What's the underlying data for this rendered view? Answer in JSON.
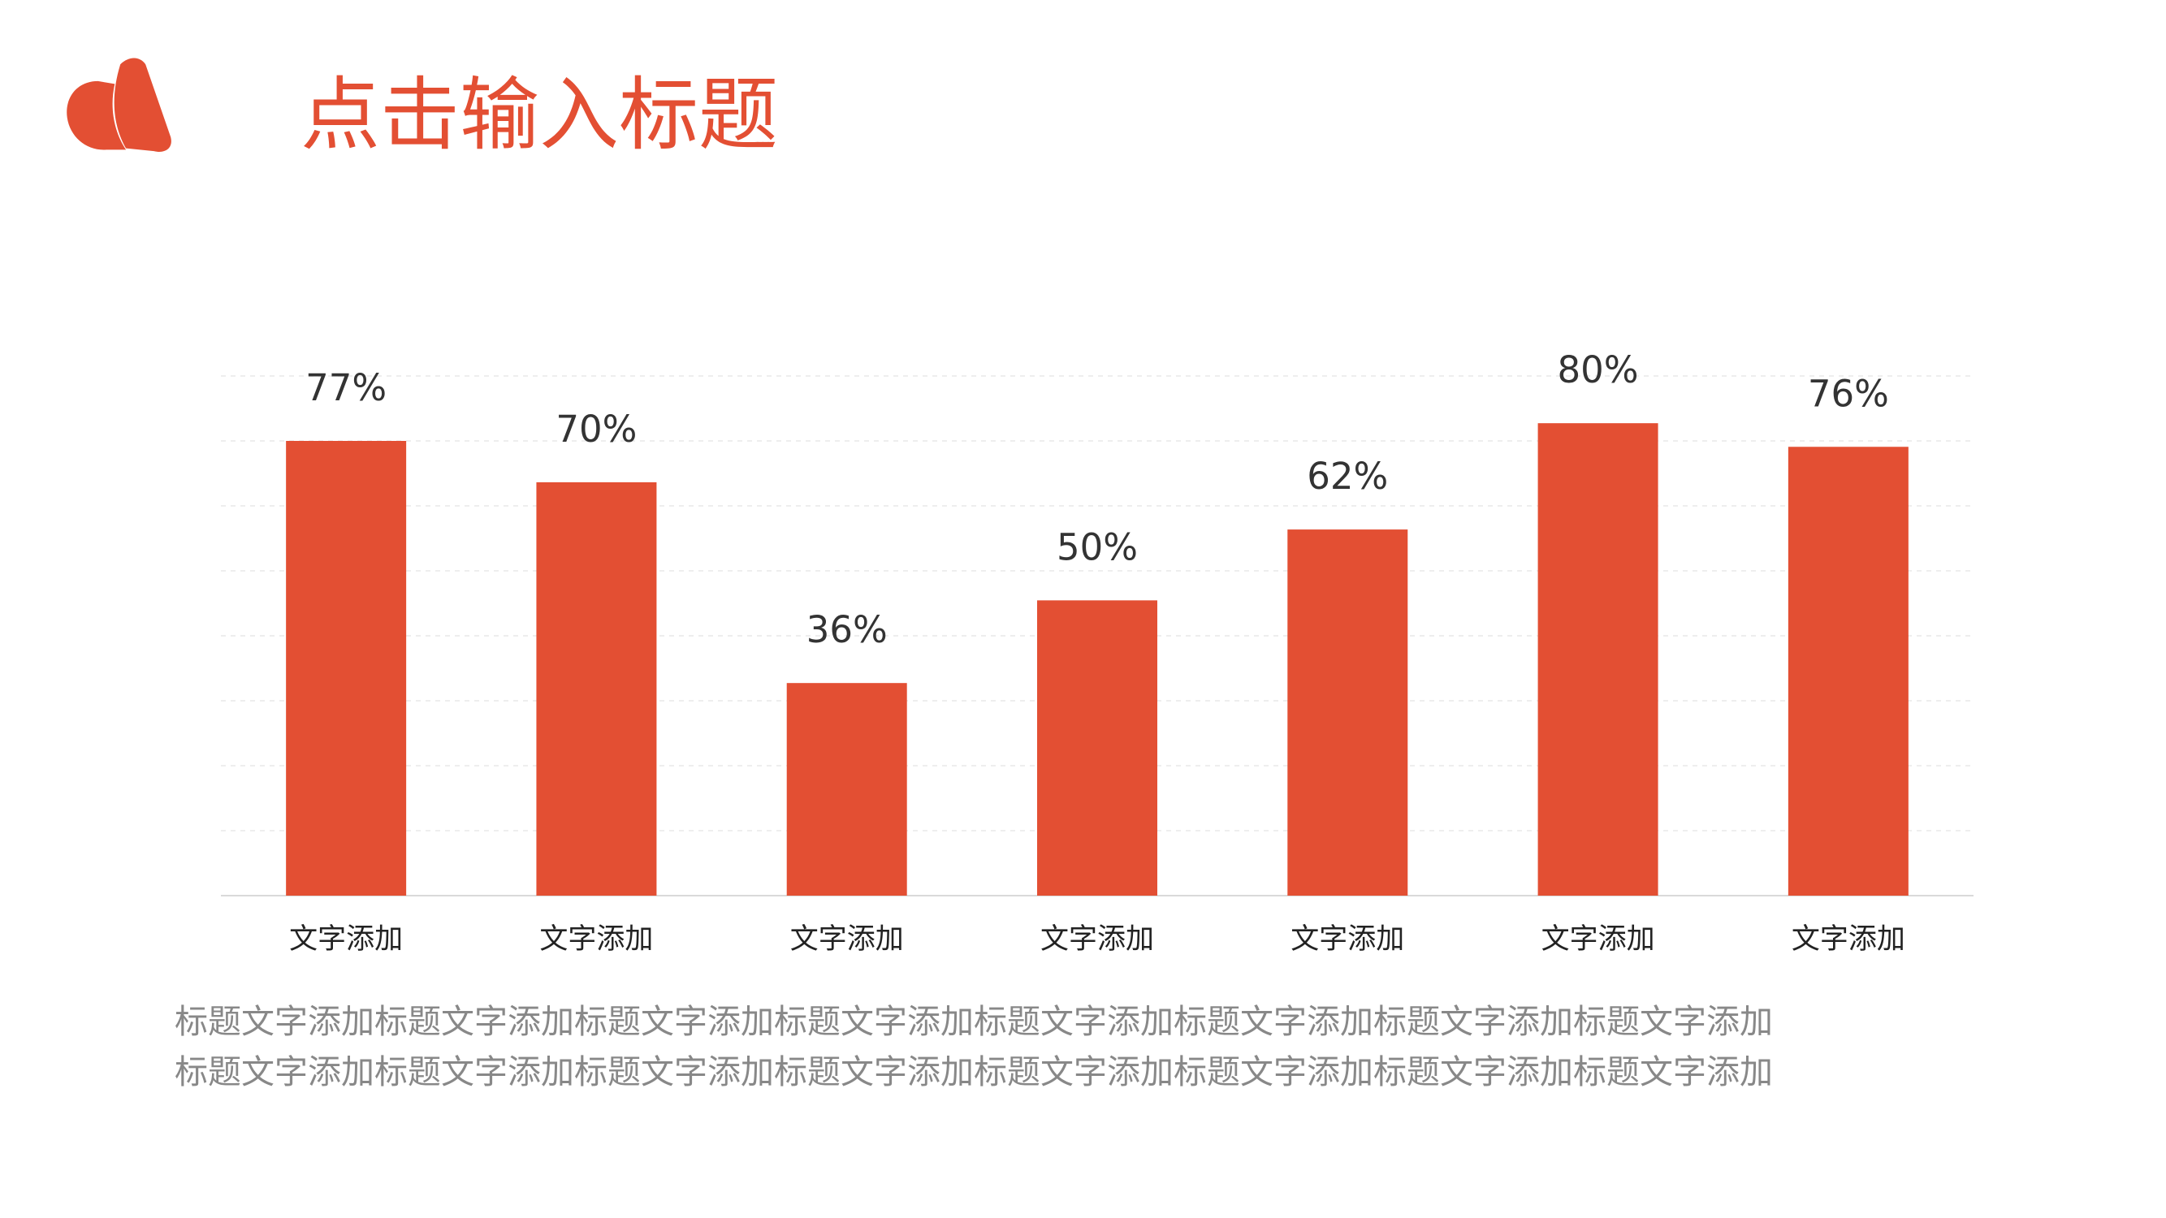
{
  "header": {
    "title": "点击输入标题"
  },
  "chart_data": {
    "type": "bar",
    "categories": [
      "文字添加",
      "文字添加",
      "文字添加",
      "文字添加",
      "文字添加",
      "文字添加",
      "文字添加"
    ],
    "values": [
      77,
      70,
      36,
      50,
      62,
      80,
      76
    ],
    "value_labels": [
      "77%",
      "70%",
      "36%",
      "50%",
      "62%",
      "80%",
      "76%"
    ],
    "color": "#e34f33",
    "ylim": [
      0,
      88
    ],
    "yticks": [
      0,
      11,
      22,
      33,
      44,
      55,
      66,
      77,
      88
    ],
    "grid": true
  },
  "body": {
    "lines": [
      "标题文字添加标题文字添加标题文字添加标题文字添加标题文字添加标题文字添加标题文字添加标题文字添加",
      "标题文字添加标题文字添加标题文字添加标题文字添加标题文字添加标题文字添加标题文字添加标题文字添加"
    ]
  }
}
